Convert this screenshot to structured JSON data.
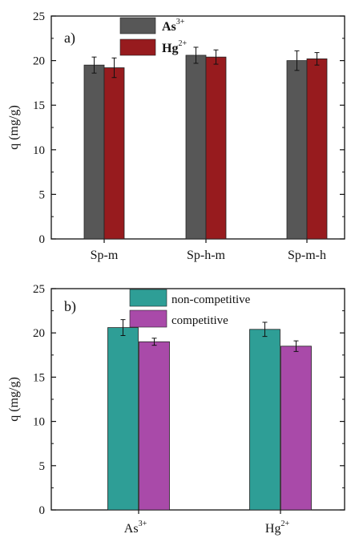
{
  "chart_data": [
    {
      "type": "bar",
      "panel_label": "a)",
      "categories": [
        "Sp-m",
        "Sp-h-m",
        "Sp-m-h"
      ],
      "series": [
        {
          "name": "As",
          "name_sup": "3+",
          "color": "#575757",
          "values": [
            19.5,
            20.6,
            20.0
          ],
          "errors": [
            0.9,
            0.9,
            1.1
          ]
        },
        {
          "name": "Hg",
          "name_sup": "2+",
          "color": "#971b1e",
          "values": [
            19.2,
            20.4,
            20.2
          ],
          "errors": [
            1.1,
            0.8,
            0.7
          ]
        }
      ],
      "ylabel": "q (mg/g)",
      "ylim": [
        0,
        25
      ],
      "yticks": [
        "0",
        "5",
        "10",
        "15",
        "20",
        "25"
      ],
      "legend_position": "top-center",
      "legend_style": "bold"
    },
    {
      "type": "bar",
      "panel_label": "b)",
      "categories": [
        {
          "base": "As",
          "sup": "3+"
        },
        {
          "base": "Hg",
          "sup": "2+"
        }
      ],
      "series": [
        {
          "name": "non-competitive",
          "color": "#2e9e96",
          "values": [
            20.6,
            20.4
          ],
          "errors": [
            0.9,
            0.8
          ]
        },
        {
          "name": "competitive",
          "color": "#a94aa9",
          "values": [
            19.0,
            18.5
          ],
          "errors": [
            0.4,
            0.6
          ]
        }
      ],
      "ylabel": "q (mg/g)",
      "ylim": [
        0,
        25
      ],
      "yticks": [
        "0",
        "5",
        "10",
        "15",
        "20",
        "25"
      ],
      "legend_position": "top-center",
      "legend_style": "normal"
    }
  ]
}
